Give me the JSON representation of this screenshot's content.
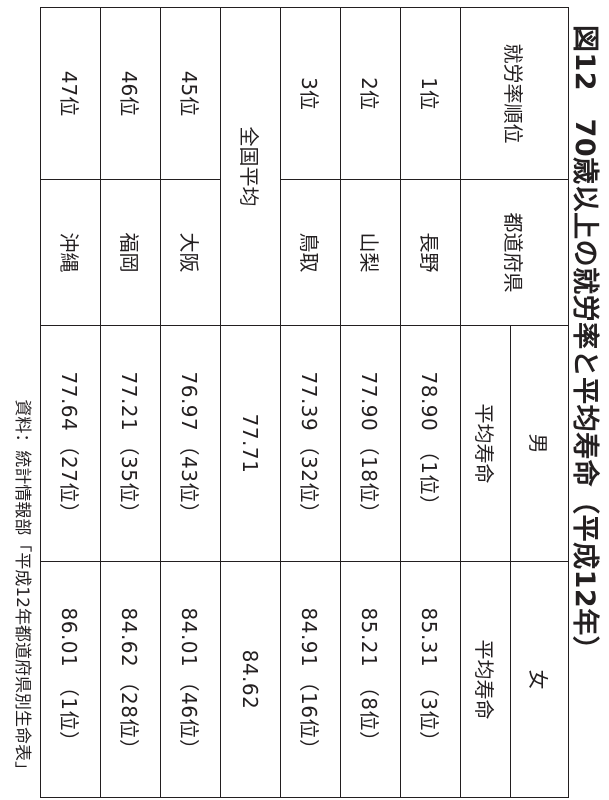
{
  "title": "図12　70歳以上の就労率と平均寿命（平成12年）",
  "headers": {
    "rank": "就労率順位",
    "prefecture": "都道府県",
    "male": "男",
    "female": "女",
    "male_sub": "平均寿命",
    "female_sub": "平均寿命"
  },
  "rows_top": [
    {
      "rank": "1位",
      "pref": "長野",
      "m_val": "78.90",
      "m_rank": "（1位）",
      "f_val": "85.31",
      "f_rank": "（3位）"
    },
    {
      "rank": "2位",
      "pref": "山梨",
      "m_val": "77.90",
      "m_rank": "（18位）",
      "f_val": "85.21",
      "f_rank": "（8位）"
    },
    {
      "rank": "3位",
      "pref": "鳥取",
      "m_val": "77.39",
      "m_rank": "（32位）",
      "f_val": "84.91",
      "f_rank": "（16位）"
    }
  ],
  "national": {
    "label": "全国平均",
    "male": "77.71",
    "female": "84.62"
  },
  "rows_bottom": [
    {
      "rank": "45位",
      "pref": "大阪",
      "m_val": "76.97",
      "m_rank": "（43位）",
      "f_val": "84.01",
      "f_rank": "（46位）"
    },
    {
      "rank": "46位",
      "pref": "福岡",
      "m_val": "77.21",
      "m_rank": "（35位）",
      "f_val": "84.62",
      "f_rank": "（28位）"
    },
    {
      "rank": "47位",
      "pref": "沖縄",
      "m_val": "77.64",
      "m_rank": "（27位）",
      "f_val": "86.01",
      "f_rank": "（1位）"
    }
  ],
  "source": "資料：統計情報部「平成12年都道府県別生命表」"
}
